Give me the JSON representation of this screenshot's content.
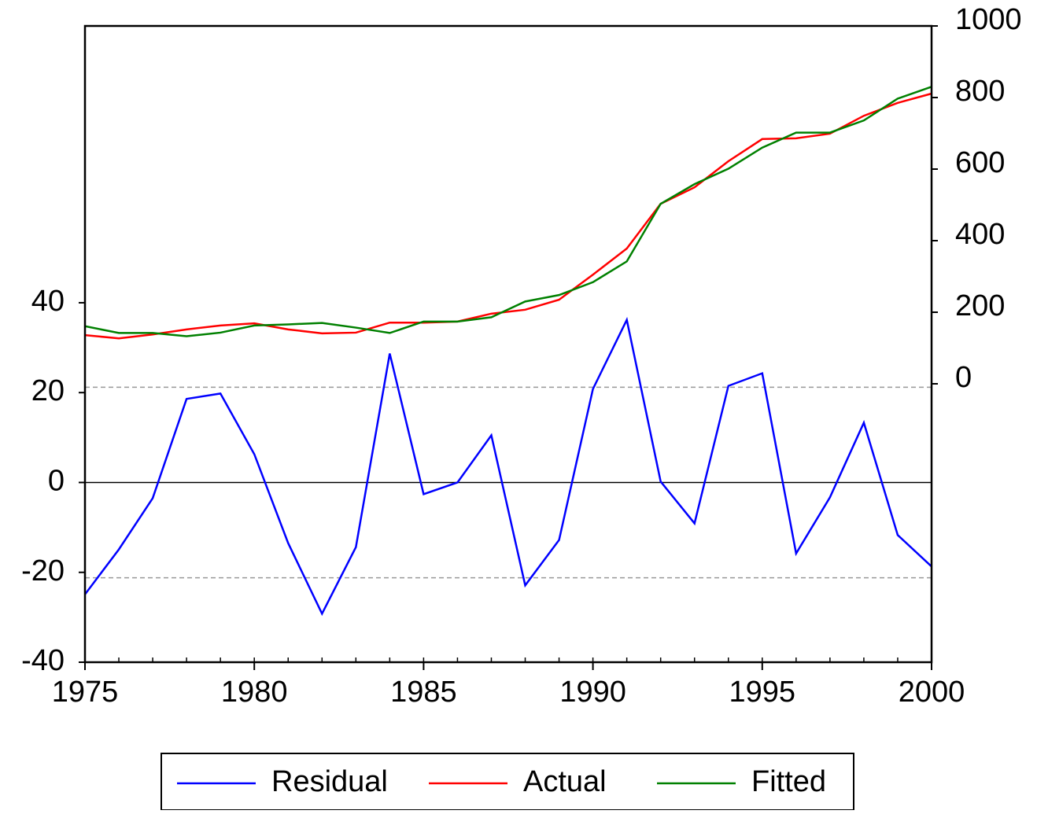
{
  "chart_data": {
    "type": "line",
    "x": [
      1975,
      1976,
      1977,
      1978,
      1979,
      1980,
      1981,
      1982,
      1983,
      1984,
      1985,
      1986,
      1987,
      1988,
      1989,
      1990,
      1991,
      1992,
      1993,
      1994,
      1995,
      1996,
      1997,
      1998,
      1999,
      2000
    ],
    "xlim": [
      1975,
      2000
    ],
    "xticks": [
      1975,
      1980,
      1985,
      1990,
      1995,
      2000
    ],
    "ylim": [
      -40,
      101.6
    ],
    "yticks": [
      -40,
      -20,
      0,
      20,
      40
    ],
    "y2lim": [
      -778,
      1000
    ],
    "y2ticks": [
      0,
      200,
      400,
      600,
      800,
      1000
    ],
    "reference_lines": [
      21.2,
      -21.2
    ],
    "zero_line": 0,
    "legend": "bottom",
    "series": [
      {
        "name": "Residual",
        "color": "#0000ff",
        "values": [
          -24.9,
          -14.9,
          -3.5,
          18.6,
          19.8,
          6.3,
          -13.5,
          -29.2,
          -14.4,
          28.7,
          -2.6,
          0,
          10.5,
          -22.9,
          -12.8,
          20.8,
          36.2,
          0.2,
          -9.1,
          21.5,
          24.3,
          -15.8,
          -3.3,
          13.3,
          -11.7,
          -18.7
        ]
      },
      {
        "name": "Actual",
        "color": "#ff0000",
        "axis": "y2",
        "values": [
          136,
          127,
          138,
          152,
          163,
          169,
          152,
          141,
          143,
          171,
          171,
          174,
          196,
          207,
          235,
          305,
          378,
          503,
          549,
          622,
          684,
          686,
          699,
          749,
          785,
          811
        ]
      },
      {
        "name": "Fitted",
        "color": "#008000",
        "axis": "y2",
        "values": [
          161,
          142,
          142,
          133,
          143,
          163,
          166,
          170,
          157,
          142,
          174,
          174,
          186,
          230,
          248,
          284,
          342,
          503,
          558,
          601,
          660,
          702,
          702,
          736,
          797,
          830
        ]
      }
    ]
  }
}
